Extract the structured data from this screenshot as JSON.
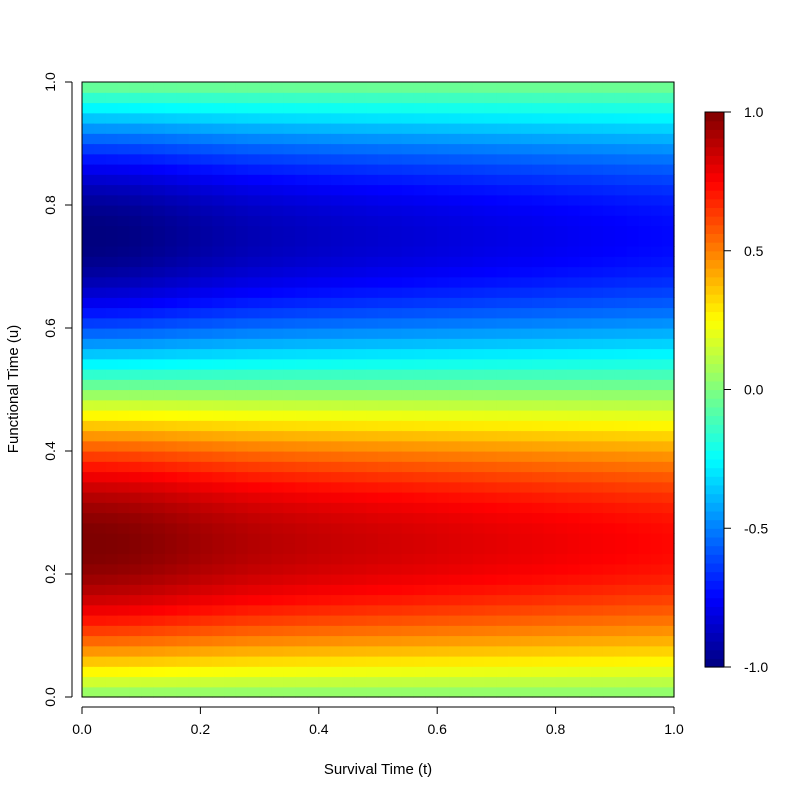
{
  "chart_data": {
    "type": "heatmap",
    "title": "",
    "xlabel": "Survival Time (t)",
    "ylabel": "Functional Time (u)",
    "xlim": [
      0,
      1
    ],
    "ylim": [
      0,
      1
    ],
    "x_ticks": [
      "0.0",
      "0.2",
      "0.4",
      "0.6",
      "0.8",
      "1.0"
    ],
    "y_ticks": [
      "0.0",
      "0.2",
      "0.4",
      "0.6",
      "0.8",
      "1.0"
    ],
    "x_tick_values": [
      0,
      0.2,
      0.4,
      0.6,
      0.8,
      1.0
    ],
    "y_tick_values": [
      0,
      0.2,
      0.4,
      0.6,
      0.8,
      1.0
    ],
    "colorbar": {
      "range": [
        -1,
        1
      ],
      "ticks": [
        "1.0",
        "0.5",
        "0.0",
        "-0.5",
        "-1.0"
      ],
      "tick_values": [
        1.0,
        0.5,
        0.0,
        -0.5,
        -1.0
      ],
      "colors": [
        "#00007F",
        "#0000FF",
        "#007FFF",
        "#00FFFF",
        "#7FFF7F",
        "#FFFF00",
        "#FF7F00",
        "#FF0000",
        "#7F0000"
      ]
    },
    "value_description_u": [
      0.0,
      0.1,
      0.25,
      0.4,
      0.5,
      0.6,
      0.75,
      0.9,
      1.0
    ],
    "value_at_t0": [
      0.0,
      0.5,
      0.95,
      0.55,
      0.0,
      -0.55,
      -0.95,
      -0.5,
      0.0
    ],
    "value_at_t1": [
      0.0,
      0.45,
      0.78,
      0.45,
      0.0,
      -0.45,
      -0.72,
      -0.4,
      0.0
    ],
    "grid": false,
    "legend": "right"
  }
}
